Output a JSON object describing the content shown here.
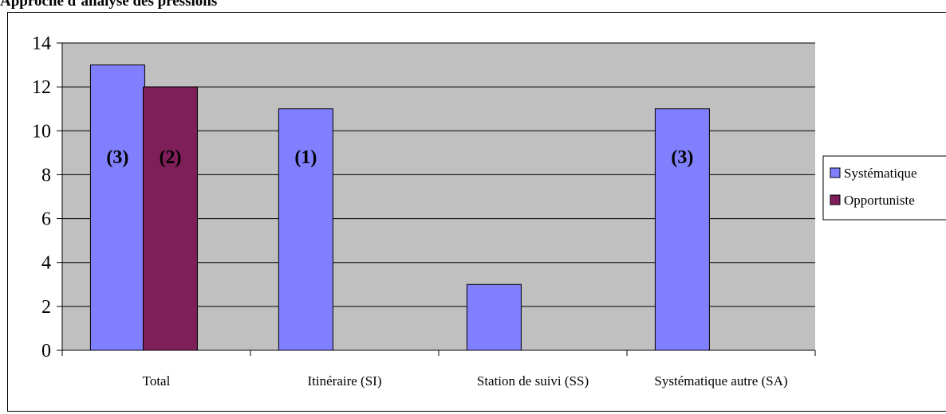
{
  "heading": "Approche d’analyse des pressions",
  "colors": {
    "plot_bg": "#C0C0C0",
    "systematique": "#8080FF",
    "opportuniste": "#7F1F5A",
    "grid": "#000000"
  },
  "chart_data": {
    "type": "bar",
    "categories": [
      "Total",
      "Itinéraire (SI)",
      "Station de suivi (SS)",
      "Systématique autre (SA)"
    ],
    "series": [
      {
        "name": "Systématique",
        "values": [
          13,
          11,
          3,
          11
        ],
        "labels": [
          "(3)",
          "(1)",
          "",
          "(3)"
        ]
      },
      {
        "name": "Opportuniste",
        "values": [
          12,
          null,
          null,
          null
        ],
        "labels": [
          "(2)",
          "",
          "",
          ""
        ]
      }
    ],
    "yticks": [
      "0",
      "2",
      "4",
      "6",
      "8",
      "10",
      "12",
      "14"
    ],
    "ylim": [
      0,
      14
    ],
    "grid": true,
    "legend_position": "right"
  }
}
